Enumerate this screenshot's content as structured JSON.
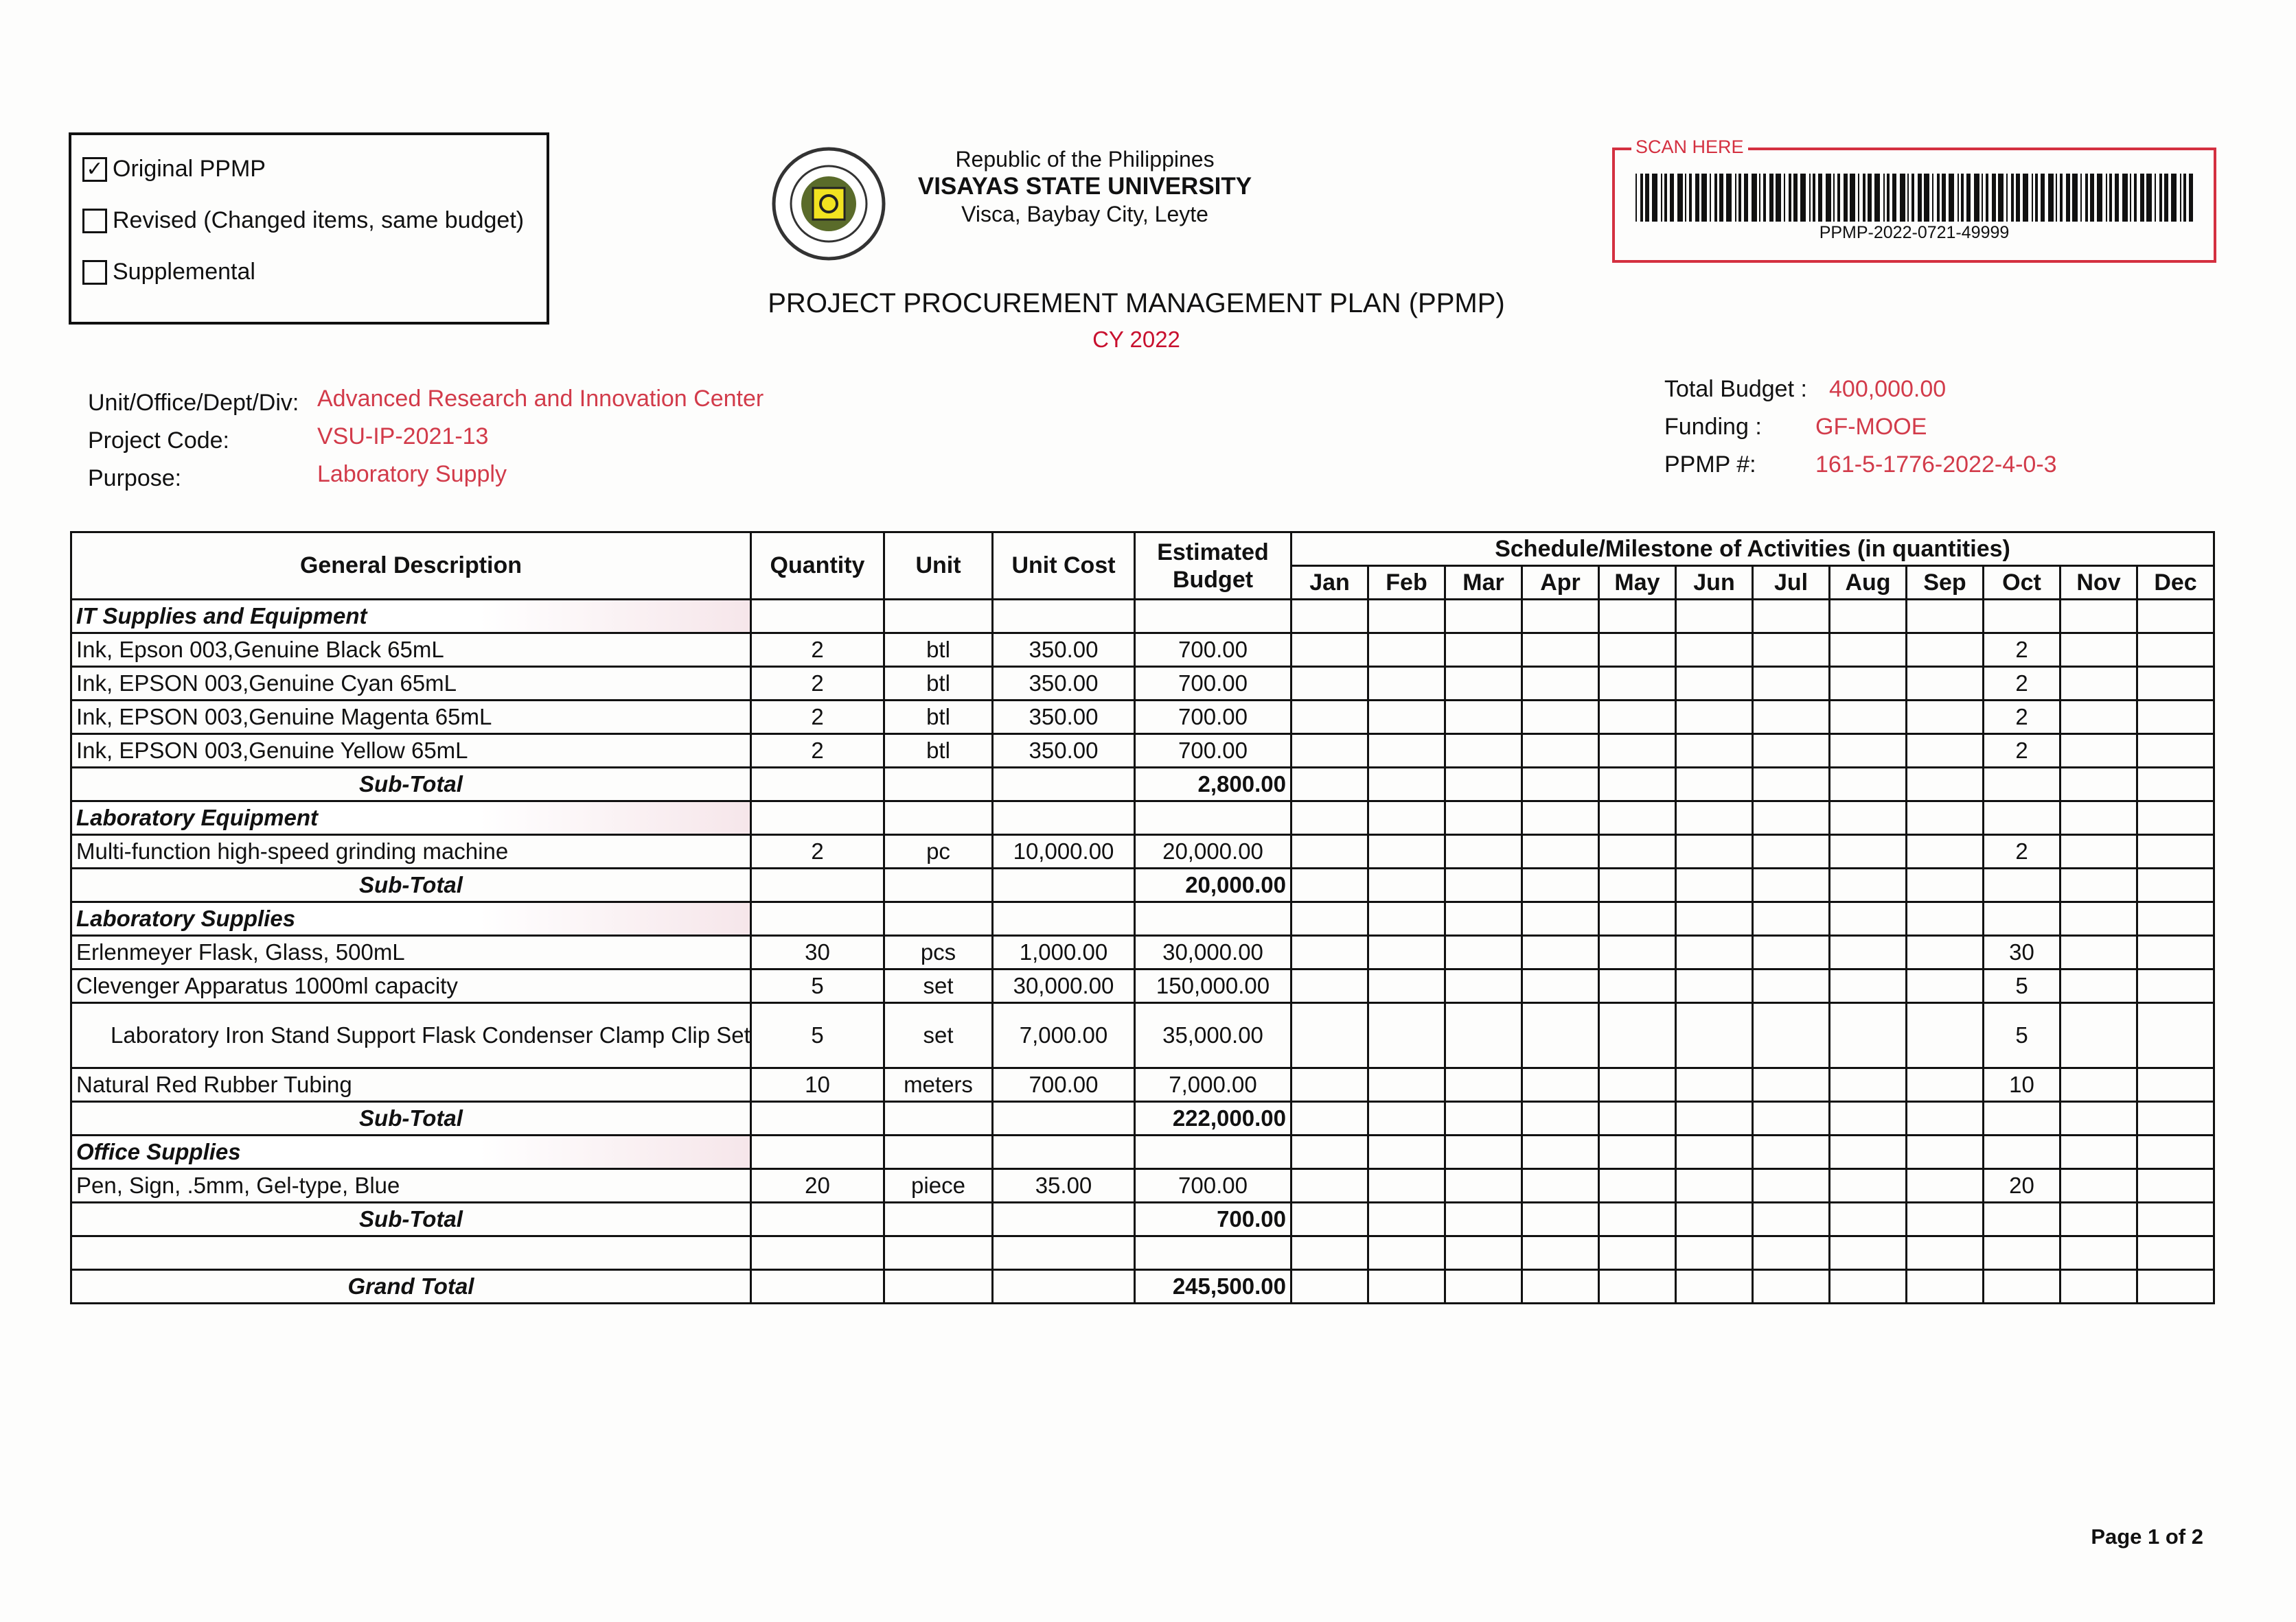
{
  "plan_type_options": [
    {
      "label": "Original PPMP",
      "checked": true
    },
    {
      "label": "Revised (Changed items, same budget)",
      "checked": false
    },
    {
      "label": "Supplemental",
      "checked": false
    }
  ],
  "header": {
    "country": "Republic of the Philippines",
    "university": "VISAYAS STATE UNIVERSITY",
    "address": "Visca, Baybay City, Leyte",
    "title": "PROJECT PROCUREMENT MANAGEMENT PLAN (PPMP)",
    "year": "CY 2022",
    "seal_text": "VISAYAS STATE UNIVERSITY"
  },
  "scan": {
    "label": "SCAN HERE",
    "code": "PPMP-2022-0721-49999"
  },
  "info_left": [
    {
      "label": "Unit/Office/Dept/Div:",
      "value": "Advanced Research and Innovation Center"
    },
    {
      "label": "Project Code:",
      "value": "VSU-IP-2021-13"
    },
    {
      "label": "Purpose:",
      "value": "Laboratory Supply"
    }
  ],
  "info_right": [
    {
      "label": "Total Budget :",
      "value": "400,000.00"
    },
    {
      "label": "Funding :",
      "value": "GF-MOOE"
    },
    {
      "label": "PPMP #:",
      "value": "161-5-1776-2022-4-0-3"
    }
  ],
  "table": {
    "headers": {
      "description": "General Description",
      "quantity": "Quantity",
      "unit": "Unit",
      "unit_cost": "Unit Cost",
      "budget": "Estimated Budget",
      "schedule": "Schedule/Milestone of Activities (in quantities)"
    },
    "months": [
      "Jan",
      "Feb",
      "Mar",
      "Apr",
      "May",
      "Jun",
      "Jul",
      "Aug",
      "Sep",
      "Oct",
      "Nov",
      "Dec"
    ],
    "groups": [
      {
        "category": "IT Supplies and Equipment",
        "items": [
          {
            "desc": "Ink, Epson 003,Genuine Black 65mL",
            "qty": "2",
            "unit": "btl",
            "cost": "350.00",
            "budget": "700.00",
            "oct": "2"
          },
          {
            "desc": "Ink, EPSON 003,Genuine Cyan 65mL",
            "qty": "2",
            "unit": "btl",
            "cost": "350.00",
            "budget": "700.00",
            "oct": "2"
          },
          {
            "desc": "Ink, EPSON 003,Genuine Magenta 65mL",
            "qty": "2",
            "unit": "btl",
            "cost": "350.00",
            "budget": "700.00",
            "oct": "2"
          },
          {
            "desc": "Ink, EPSON 003,Genuine Yellow 65mL",
            "qty": "2",
            "unit": "btl",
            "cost": "350.00",
            "budget": "700.00",
            "oct": "2"
          }
        ],
        "subtotal_label": "Sub-Total",
        "subtotal": "2,800.00"
      },
      {
        "category": "Laboratory Equipment",
        "items": [
          {
            "desc": "Multi-function high-speed grinding machine",
            "qty": "2",
            "unit": "pc",
            "cost": "10,000.00",
            "budget": "20,000.00",
            "oct": "2"
          }
        ],
        "subtotal_label": "Sub-Total",
        "subtotal": "20,000.00"
      },
      {
        "category": "Laboratory Supplies",
        "items": [
          {
            "desc": "Erlenmeyer Flask, Glass, 500mL",
            "qty": "30",
            "unit": "pcs",
            "cost": "1,000.00",
            "budget": "30,000.00",
            "oct": "30"
          },
          {
            "desc": "Clevenger Apparatus 1000ml capacity",
            "qty": "5",
            "unit": "set",
            "cost": "30,000.00",
            "budget": "150,000.00",
            "oct": "5"
          },
          {
            "desc": "Laboratory Iron Stand Support Flask Condenser Clamp Clip Set",
            "qty": "5",
            "unit": "set",
            "cost": "7,000.00",
            "budget": "35,000.00",
            "oct": "5"
          },
          {
            "desc": "Natural Red Rubber Tubing",
            "qty": "10",
            "unit": "meters",
            "cost": "700.00",
            "budget": "7,000.00",
            "oct": "10"
          }
        ],
        "subtotal_label": "Sub-Total",
        "subtotal": "222,000.00"
      },
      {
        "category": "Office Supplies",
        "items": [
          {
            "desc": "Pen, Sign, .5mm, Gel-type, Blue",
            "qty": "20",
            "unit": "piece",
            "cost": "35.00",
            "budget": "700.00",
            "oct": "20"
          }
        ],
        "subtotal_label": "Sub-Total",
        "subtotal": "700.00"
      }
    ],
    "grand_total_label": "Grand Total",
    "grand_total": "245,500.00"
  },
  "footer": {
    "page": "Page 1 of 2"
  },
  "colors": {
    "accent_red": "#d23b4a",
    "scan_border": "#d43040"
  }
}
